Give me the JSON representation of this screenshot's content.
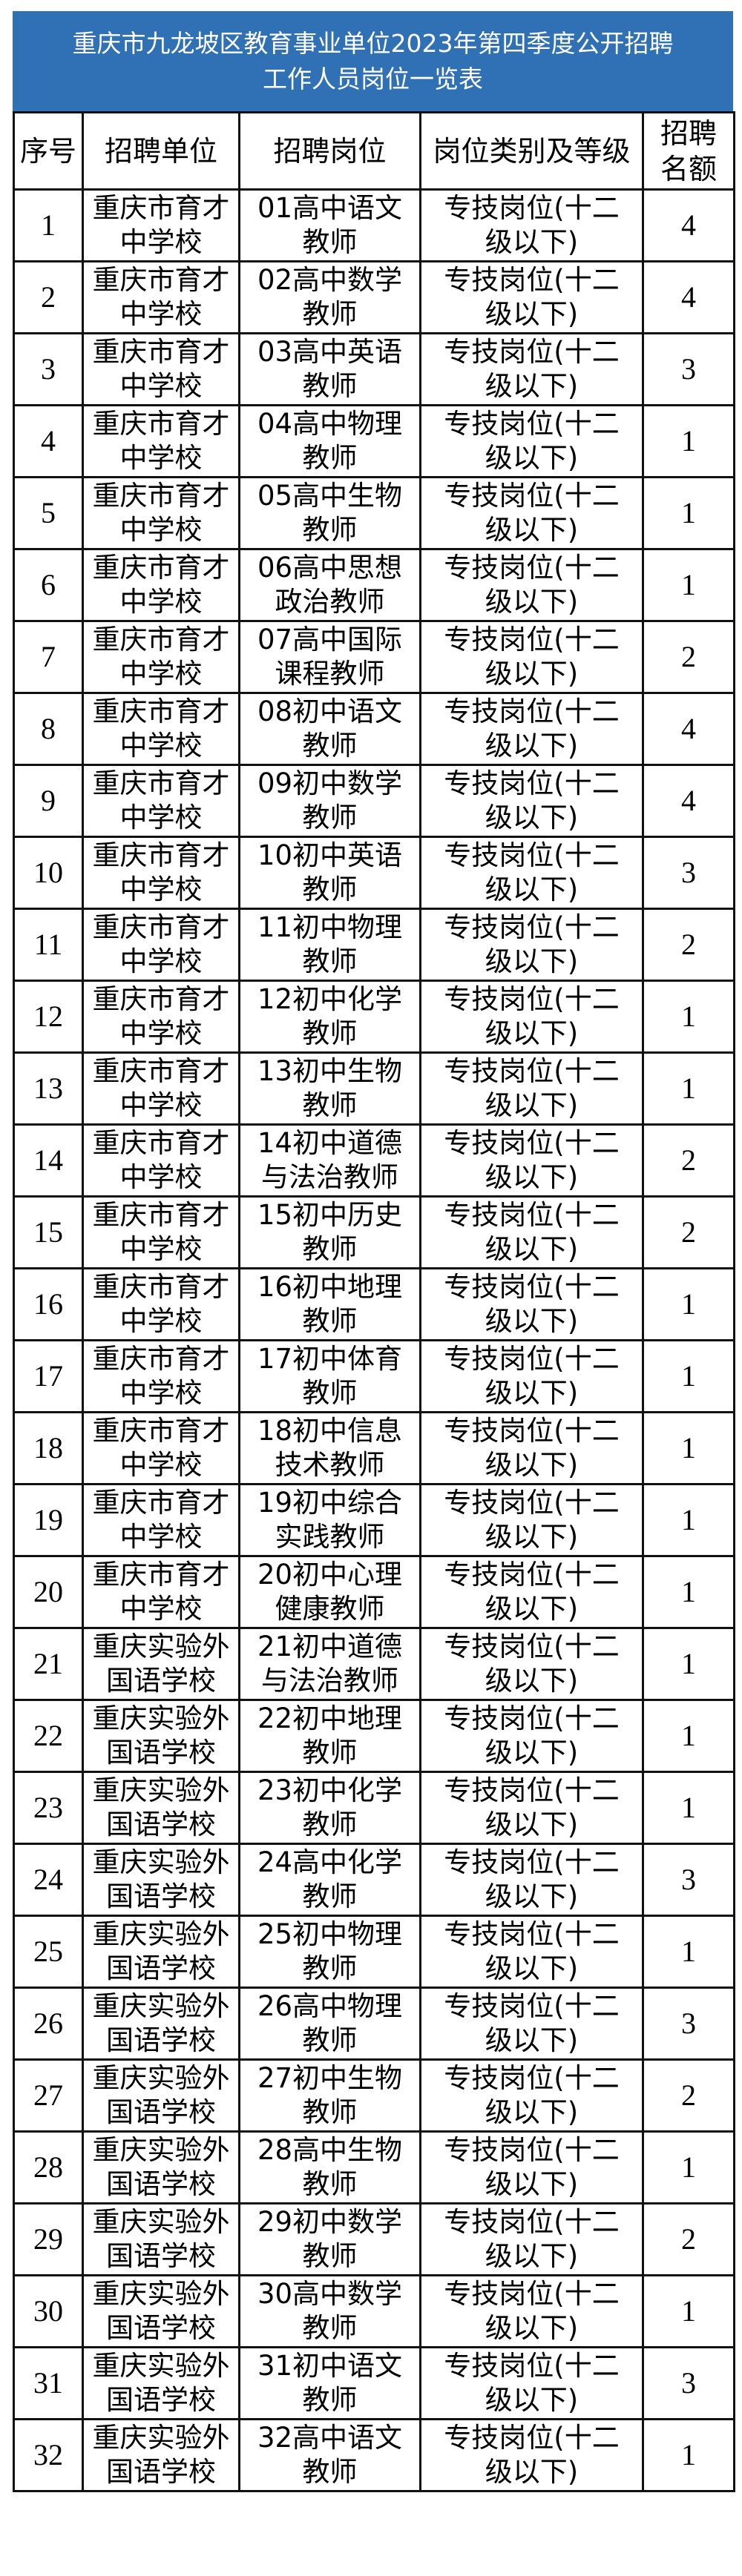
{
  "title": {
    "line1": "重庆市九龙坡区教育事业单位2023年第四季度公开招聘",
    "line2": "工作人员岗位一览表"
  },
  "colors": {
    "title_bg": "#3071b5"
  },
  "headers": [
    "序号",
    "招聘单位",
    "招聘岗位",
    "岗位类别及等级",
    "招聘名额"
  ],
  "rows": [
    {
      "no": "1",
      "unit": "重庆市育才中学校",
      "post": "01高中语文教师",
      "grade": "专技岗位(十二级以下)",
      "count": "4"
    },
    {
      "no": "2",
      "unit": "重庆市育才中学校",
      "post": "02高中数学教师",
      "grade": "专技岗位(十二级以下)",
      "count": "4"
    },
    {
      "no": "3",
      "unit": "重庆市育才中学校",
      "post": "03高中英语教师",
      "grade": "专技岗位(十二级以下)",
      "count": "3"
    },
    {
      "no": "4",
      "unit": "重庆市育才中学校",
      "post": "04高中物理教师",
      "grade": "专技岗位(十二级以下)",
      "count": "1"
    },
    {
      "no": "5",
      "unit": "重庆市育才中学校",
      "post": "05高中生物教师",
      "grade": "专技岗位(十二级以下)",
      "count": "1"
    },
    {
      "no": "6",
      "unit": "重庆市育才中学校",
      "post": "06高中思想政治教师",
      "grade": "专技岗位(十二级以下)",
      "count": "1"
    },
    {
      "no": "7",
      "unit": "重庆市育才中学校",
      "post": "07高中国际课程教师",
      "grade": "专技岗位(十二级以下)",
      "count": "2"
    },
    {
      "no": "8",
      "unit": "重庆市育才中学校",
      "post": "08初中语文教师",
      "grade": "专技岗位(十二级以下)",
      "count": "4"
    },
    {
      "no": "9",
      "unit": "重庆市育才中学校",
      "post": "09初中数学教师",
      "grade": "专技岗位(十二级以下)",
      "count": "4"
    },
    {
      "no": "10",
      "unit": "重庆市育才中学校",
      "post": "10初中英语教师",
      "grade": "专技岗位(十二级以下)",
      "count": "3"
    },
    {
      "no": "11",
      "unit": "重庆市育才中学校",
      "post": "11初中物理教师",
      "grade": "专技岗位(十二级以下)",
      "count": "2"
    },
    {
      "no": "12",
      "unit": "重庆市育才中学校",
      "post": "12初中化学教师",
      "grade": "专技岗位(十二级以下)",
      "count": "1"
    },
    {
      "no": "13",
      "unit": "重庆市育才中学校",
      "post": "13初中生物教师",
      "grade": "专技岗位(十二级以下)",
      "count": "1"
    },
    {
      "no": "14",
      "unit": "重庆市育才中学校",
      "post": "14初中道德与法治教师",
      "grade": "专技岗位(十二级以下)",
      "count": "2"
    },
    {
      "no": "15",
      "unit": "重庆市育才中学校",
      "post": "15初中历史教师",
      "grade": "专技岗位(十二级以下)",
      "count": "2"
    },
    {
      "no": "16",
      "unit": "重庆市育才中学校",
      "post": "16初中地理教师",
      "grade": "专技岗位(十二级以下)",
      "count": "1"
    },
    {
      "no": "17",
      "unit": "重庆市育才中学校",
      "post": "17初中体育教师",
      "grade": "专技岗位(十二级以下)",
      "count": "1"
    },
    {
      "no": "18",
      "unit": "重庆市育才中学校",
      "post": "18初中信息技术教师",
      "grade": "专技岗位(十二级以下)",
      "count": "1"
    },
    {
      "no": "19",
      "unit": "重庆市育才中学校",
      "post": "19初中综合实践教师",
      "grade": "专技岗位(十二级以下)",
      "count": "1"
    },
    {
      "no": "20",
      "unit": "重庆市育才中学校",
      "post": "20初中心理健康教师",
      "grade": "专技岗位(十二级以下)",
      "count": "1"
    },
    {
      "no": "21",
      "unit": "重庆实验外国语学校",
      "post": "21初中道德与法治教师",
      "grade": "专技岗位(十二级以下)",
      "count": "1"
    },
    {
      "no": "22",
      "unit": "重庆实验外国语学校",
      "post": "22初中地理教师",
      "grade": "专技岗位(十二级以下)",
      "count": "1"
    },
    {
      "no": "23",
      "unit": "重庆实验外国语学校",
      "post": "23初中化学教师",
      "grade": "专技岗位(十二级以下)",
      "count": "1"
    },
    {
      "no": "24",
      "unit": "重庆实验外国语学校",
      "post": "24高中化学教师",
      "grade": "专技岗位(十二级以下)",
      "count": "3"
    },
    {
      "no": "25",
      "unit": "重庆实验外国语学校",
      "post": "25初中物理教师",
      "grade": "专技岗位(十二级以下)",
      "count": "1"
    },
    {
      "no": "26",
      "unit": "重庆实验外国语学校",
      "post": "26高中物理教师",
      "grade": "专技岗位(十二级以下)",
      "count": "3"
    },
    {
      "no": "27",
      "unit": "重庆实验外国语学校",
      "post": "27初中生物教师",
      "grade": "专技岗位(十二级以下)",
      "count": "2"
    },
    {
      "no": "28",
      "unit": "重庆实验外国语学校",
      "post": "28高中生物教师",
      "grade": "专技岗位(十二级以下)",
      "count": "1"
    },
    {
      "no": "29",
      "unit": "重庆实验外国语学校",
      "post": "29初中数学教师",
      "grade": "专技岗位(十二级以下)",
      "count": "2"
    },
    {
      "no": "30",
      "unit": "重庆实验外国语学校",
      "post": "30高中数学教师",
      "grade": "专技岗位(十二级以下)",
      "count": "1"
    },
    {
      "no": "31",
      "unit": "重庆实验外国语学校",
      "post": "31初中语文教师",
      "grade": "专技岗位(十二级以下)",
      "count": "3"
    },
    {
      "no": "32",
      "unit": "重庆实验外国语学校",
      "post": "32高中语文教师",
      "grade": "专技岗位(十二级以下)",
      "count": "1"
    }
  ]
}
